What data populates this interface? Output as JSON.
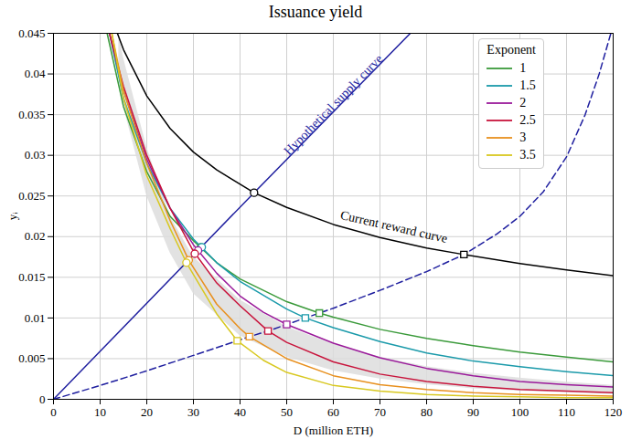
{
  "chart_data": {
    "type": "line",
    "title": "Issuance yield",
    "x_label": "D (million ETH)",
    "y_label": "yᵢ",
    "xlim": [
      0,
      120
    ],
    "xticks": [
      0,
      10,
      20,
      30,
      40,
      50,
      60,
      70,
      80,
      90,
      100,
      110,
      120
    ],
    "ylim": [
      0,
      0.045
    ],
    "yticks": [
      0,
      0.005,
      0.01,
      0.015,
      0.02,
      0.025,
      0.03,
      0.035,
      0.04,
      0.045
    ],
    "grid": true,
    "legend": "upper right",
    "legend_title": "Exponent",
    "series": [
      {
        "name": "1",
        "color": "#3a9a3a",
        "x": [
          11.5,
          15,
          20,
          25,
          30,
          35,
          40,
          50,
          57,
          60,
          70,
          80,
          90,
          100,
          110,
          120
        ],
        "values": [
          0.045,
          0.036,
          0.028,
          0.0225,
          0.0195,
          0.0168,
          0.0148,
          0.012,
          0.0106,
          0.0101,
          0.0086,
          0.0075,
          0.0066,
          0.0058,
          0.0052,
          0.0046
        ],
        "points": [
          {
            "x": 31.6,
            "y": 0.0187,
            "marker": "circle"
          },
          {
            "x": 57,
            "y": 0.0106,
            "marker": "square"
          }
        ]
      },
      {
        "name": "1.5",
        "color": "#1a9aaa",
        "x": [
          12,
          15,
          20,
          25,
          30,
          35,
          40,
          50,
          54,
          60,
          70,
          80,
          90,
          100,
          110,
          120
        ],
        "values": [
          0.045,
          0.037,
          0.029,
          0.0235,
          0.0197,
          0.0168,
          0.0145,
          0.0111,
          0.01,
          0.0088,
          0.0071,
          0.0057,
          0.0047,
          0.004,
          0.0034,
          0.0029
        ],
        "points": [
          {
            "x": 31.8,
            "y": 0.0187,
            "marker": "circle"
          },
          {
            "x": 54,
            "y": 0.01,
            "marker": "square"
          }
        ]
      },
      {
        "name": "2",
        "color": "#9a1a9a",
        "x": [
          12,
          15,
          20,
          25,
          30,
          35,
          40,
          45,
          50,
          60,
          70,
          80,
          90,
          100,
          110,
          120
        ],
        "values": [
          0.045,
          0.038,
          0.0295,
          0.0235,
          0.019,
          0.0155,
          0.0127,
          0.0107,
          0.0092,
          0.0069,
          0.0051,
          0.0038,
          0.0029,
          0.0022,
          0.0018,
          0.0015
        ],
        "points": [
          {
            "x": 31,
            "y": 0.0183,
            "marker": "circle"
          },
          {
            "x": 50,
            "y": 0.0092,
            "marker": "square"
          }
        ]
      },
      {
        "name": "2.5",
        "color": "#c8143c",
        "x": [
          12,
          15,
          20,
          25,
          30,
          35,
          40,
          46,
          50,
          60,
          70,
          80,
          90,
          100,
          110,
          120
        ],
        "values": [
          0.045,
          0.0385,
          0.03,
          0.0235,
          0.0182,
          0.0143,
          0.0115,
          0.0084,
          0.007,
          0.0046,
          0.0031,
          0.0022,
          0.0016,
          0.0012,
          0.001,
          0.0008
        ],
        "points": [
          {
            "x": 30.3,
            "y": 0.0179,
            "marker": "circle"
          },
          {
            "x": 46,
            "y": 0.0084,
            "marker": "square"
          }
        ]
      },
      {
        "name": "3",
        "color": "#e8901e",
        "x": [
          12.5,
          15,
          20,
          25,
          29,
          35,
          40,
          42,
          50,
          60,
          70,
          80,
          90,
          100,
          110,
          120
        ],
        "values": [
          0.045,
          0.038,
          0.029,
          0.022,
          0.0171,
          0.0117,
          0.0087,
          0.0077,
          0.005,
          0.0029,
          0.0018,
          0.0012,
          0.0008,
          0.0006,
          0.0005,
          0.0004
        ],
        "points": [
          {
            "x": 29,
            "y": 0.0171,
            "marker": "circle"
          },
          {
            "x": 42,
            "y": 0.0077,
            "marker": "square"
          }
        ]
      },
      {
        "name": "3.5",
        "color": "#d8c820",
        "x": [
          12.5,
          15,
          20,
          25,
          28.5,
          35,
          39.4,
          45,
          50,
          60,
          70,
          80,
          90,
          100,
          110,
          120
        ],
        "values": [
          0.045,
          0.037,
          0.0275,
          0.021,
          0.0168,
          0.0105,
          0.0072,
          0.0048,
          0.0033,
          0.0017,
          0.001,
          0.0006,
          0.0004,
          0.0003,
          0.0002,
          0.0002
        ],
        "points": [
          {
            "x": 28.5,
            "y": 0.0168,
            "marker": "circle"
          },
          {
            "x": 39.4,
            "y": 0.0072,
            "marker": "square"
          }
        ]
      }
    ],
    "curves": [
      {
        "label": "Hypothetical supply curve",
        "color": "#1f1f9f",
        "line_style": "solid",
        "x": [
          0,
          43,
          76.5
        ],
        "values": [
          0,
          0.0254,
          0.045
        ],
        "label_x": 60,
        "label_y": 0.0362
      },
      {
        "color": "#1f1f9f",
        "line_style": "dashed",
        "x": [
          0,
          10,
          20,
          30,
          39.4,
          42,
          46,
          50,
          54,
          57,
          60,
          70,
          80,
          88,
          95,
          100,
          105,
          110,
          114,
          117,
          119.5
        ],
        "values": [
          0,
          0.0017,
          0.0035,
          0.0054,
          0.0072,
          0.0077,
          0.0084,
          0.0092,
          0.01,
          0.0106,
          0.0112,
          0.0134,
          0.0157,
          0.0178,
          0.0203,
          0.0225,
          0.0255,
          0.0298,
          0.035,
          0.04,
          0.045
        ]
      },
      {
        "label": "Current reward curve",
        "color": "#000000",
        "line_style": "solid",
        "x": [
          13.7,
          15,
          20,
          25,
          30,
          35,
          43,
          50,
          60,
          70,
          80,
          88,
          100,
          110,
          120
        ],
        "values": [
          0.045,
          0.043,
          0.0373,
          0.0333,
          0.0304,
          0.0282,
          0.0254,
          0.0236,
          0.0215,
          0.0199,
          0.0186,
          0.0178,
          0.0167,
          0.0159,
          0.0152
        ],
        "label_x": 73,
        "label_y": 0.0212,
        "points": [
          {
            "x": 43,
            "y": 0.0254,
            "marker": "circle"
          },
          {
            "x": 88,
            "y": 0.0178,
            "marker": "square"
          }
        ]
      }
    ],
    "band": {
      "color": "#dddddd",
      "x": [
        14,
        15,
        20,
        25,
        30,
        40,
        50,
        60,
        70,
        80,
        90,
        100,
        110,
        120
      ],
      "low": [
        0.04,
        0.036,
        0.025,
        0.018,
        0.013,
        0.0078,
        0.0052,
        0.0035,
        0.0025,
        0.0018,
        0.0013,
        0.001,
        0.0008,
        0.0006
      ],
      "high": [
        0.045,
        0.042,
        0.031,
        0.0225,
        0.0175,
        0.0122,
        0.0089,
        0.0068,
        0.0052,
        0.004,
        0.0032,
        0.0026,
        0.0021,
        0.0017
      ]
    }
  }
}
